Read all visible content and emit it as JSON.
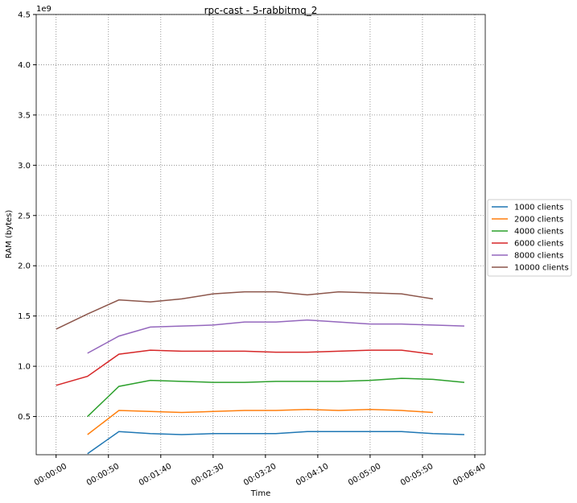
{
  "chart_data": {
    "type": "line",
    "title": "rpc-cast - 5-rabbitmq_2",
    "x_label": "Time",
    "y_label": "RAM (bytes)",
    "y_offset_label": "1e9",
    "x": [
      0,
      30,
      60,
      90,
      120,
      150,
      180,
      210,
      240,
      270,
      300,
      330,
      360,
      390
    ],
    "xlim": [
      -19,
      410
    ],
    "xticks": [
      {
        "value": 0,
        "label": "00:00:00"
      },
      {
        "value": 50,
        "label": "00:00:50"
      },
      {
        "value": 100,
        "label": "00:01:40"
      },
      {
        "value": 150,
        "label": "00:02:30"
      },
      {
        "value": 200,
        "label": "00:03:20"
      },
      {
        "value": 250,
        "label": "00:04:10"
      },
      {
        "value": 300,
        "label": "00:05:00"
      },
      {
        "value": 350,
        "label": "00:05:50"
      },
      {
        "value": 400,
        "label": "00:06:40"
      }
    ],
    "ylim": [
      0.12,
      4.5
    ],
    "yticks": [
      0.5,
      {
        "value": 1,
        "label": "1.0"
      },
      1.5,
      {
        "value": 2,
        "label": "2.0"
      },
      2.5,
      {
        "value": 3,
        "label": "3.0"
      },
      3.5,
      {
        "value": 4,
        "label": "4.0"
      },
      4.5
    ],
    "grid": true,
    "legend": "outside right",
    "series": [
      {
        "name": "1000 clients",
        "color": "#1f77b4",
        "values": [
          null,
          0.13,
          0.35,
          0.33,
          0.32,
          0.33,
          0.33,
          0.33,
          0.35,
          0.35,
          0.35,
          0.35,
          0.33,
          0.32
        ]
      },
      {
        "name": "2000 clients",
        "color": "#ff7f0e",
        "values": [
          null,
          0.32,
          0.56,
          0.55,
          0.54,
          0.55,
          0.56,
          0.56,
          0.57,
          0.56,
          0.57,
          0.56,
          0.54,
          null
        ]
      },
      {
        "name": "4000 clients",
        "color": "#2ca02c",
        "values": [
          null,
          0.5,
          0.8,
          0.86,
          0.85,
          0.84,
          0.84,
          0.85,
          0.85,
          0.85,
          0.86,
          0.88,
          0.87,
          0.84
        ]
      },
      {
        "name": "6000 clients",
        "color": "#d62728",
        "values": [
          0.81,
          0.9,
          1.12,
          1.16,
          1.15,
          1.15,
          1.15,
          1.14,
          1.14,
          1.15,
          1.16,
          1.16,
          1.12,
          null
        ]
      },
      {
        "name": "8000 clients",
        "color": "#9467bd",
        "values": [
          null,
          1.13,
          1.3,
          1.39,
          1.4,
          1.41,
          1.44,
          1.44,
          1.46,
          1.44,
          1.42,
          1.42,
          1.41,
          1.4
        ]
      },
      {
        "name": "10000 clients",
        "color": "#8c564b",
        "values": [
          1.37,
          1.52,
          1.66,
          1.64,
          1.67,
          1.72,
          1.74,
          1.74,
          1.71,
          1.74,
          1.73,
          1.72,
          1.67,
          null
        ]
      }
    ]
  }
}
